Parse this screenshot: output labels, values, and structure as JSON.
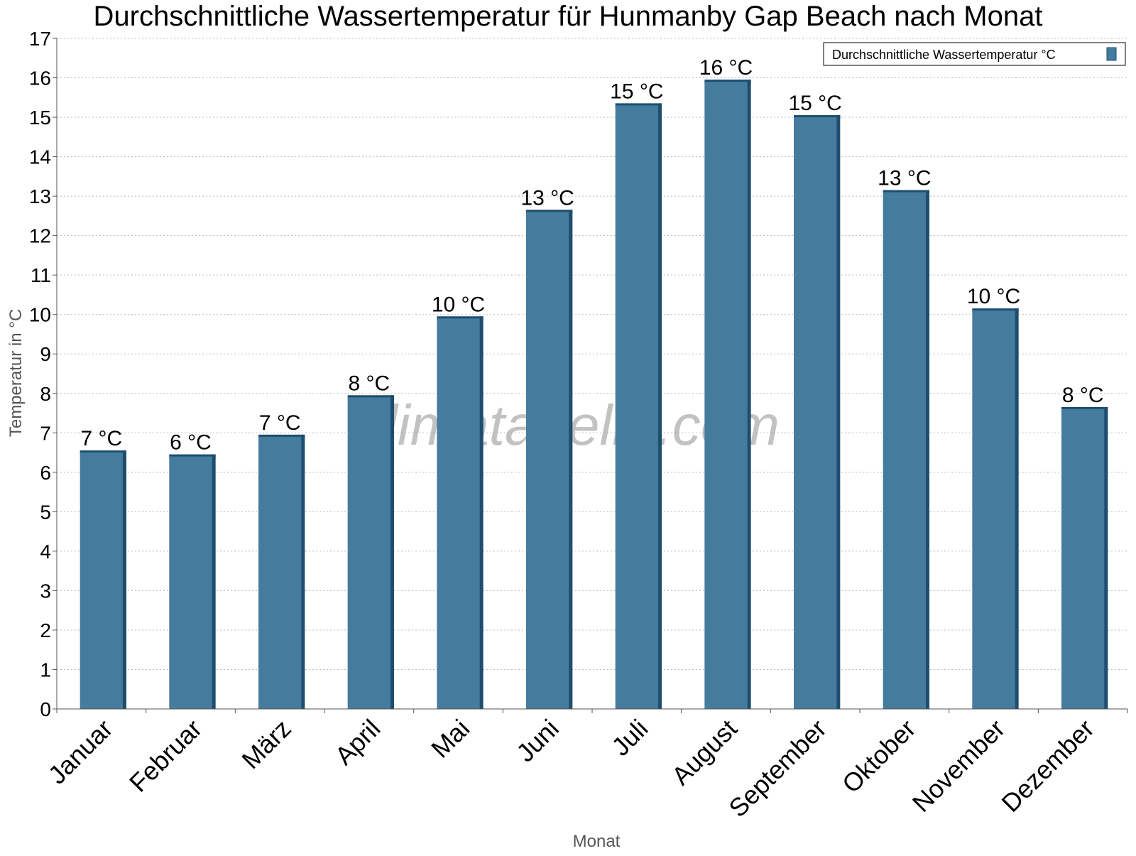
{
  "chart_data": {
    "type": "bar",
    "title": "Durchschnittliche Wassertemperatur für Hunmanby Gap Beach nach Monat",
    "xlabel": "Monat",
    "ylabel": "Temperatur in °C",
    "categories": [
      "Januar",
      "Februar",
      "März",
      "April",
      "Mai",
      "Juni",
      "Juli",
      "August",
      "September",
      "Oktober",
      "November",
      "Dezember"
    ],
    "series": [
      {
        "name": "Durchschnittliche Wassertemperatur °C",
        "values": [
          6.5,
          6.4,
          6.9,
          7.9,
          9.9,
          12.6,
          15.3,
          15.9,
          15.0,
          13.1,
          10.1,
          7.6
        ],
        "labels": [
          "7 °C",
          "6 °C",
          "7 °C",
          "8 °C",
          "10 °C",
          "13 °C",
          "15 °C",
          "16 °C",
          "15 °C",
          "13 °C",
          "10 °C",
          "8 °C"
        ],
        "color": "#457b9d",
        "shade_color": "#1d4e6e"
      }
    ],
    "ylim": [
      0,
      17
    ],
    "yticks": [
      0,
      1,
      2,
      3,
      4,
      5,
      6,
      7,
      8,
      9,
      10,
      11,
      12,
      13,
      14,
      15,
      16,
      17
    ],
    "grid": true,
    "legend_position": "top-right",
    "watermark": "klimatabelle.com"
  }
}
